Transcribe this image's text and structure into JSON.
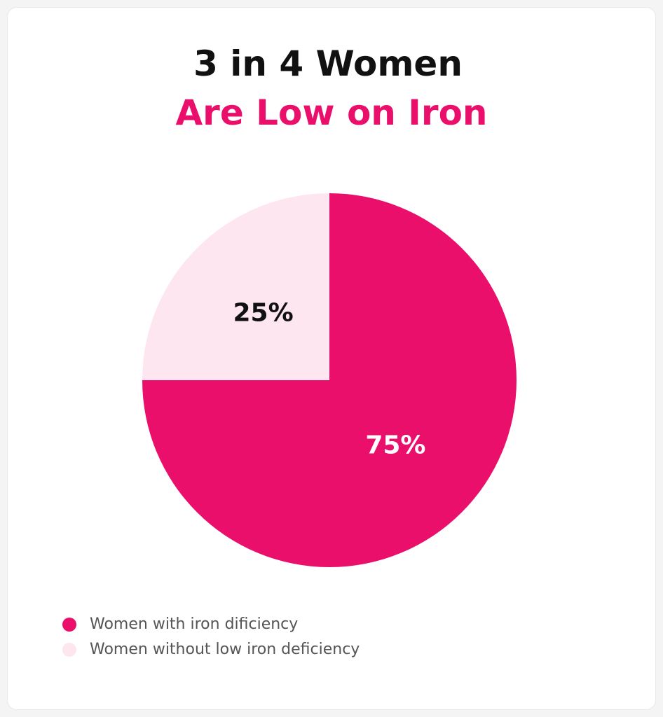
{
  "chart_data": {
    "type": "pie",
    "title": "3 in 4 Women",
    "subtitle": "Are Low on Iron",
    "categories": [
      "Women with iron dificiency",
      "Women without low iron deficiency"
    ],
    "values": [
      75,
      25
    ],
    "value_labels": [
      "75%",
      "25%"
    ],
    "colors": [
      "#ea0f6b",
      "#fde6f0"
    ],
    "label_colors": [
      "#ffffff",
      "#111111"
    ]
  }
}
